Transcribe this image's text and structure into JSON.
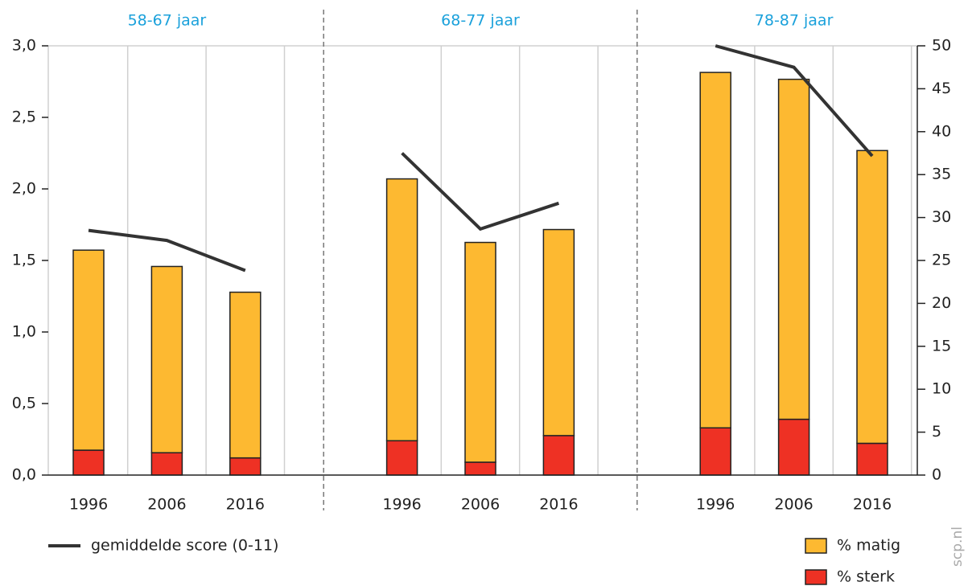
{
  "chart_data": {
    "type": "bar",
    "panels": [
      "58-67 jaar",
      "68-77 jaar",
      "78-87 jaar"
    ],
    "categories": [
      "1996",
      "2006",
      "2016",
      "1996",
      "2006",
      "2016",
      "1996",
      "2006",
      "2016"
    ],
    "series": [
      {
        "name": "% sterk",
        "color": "#ee3124",
        "axis": "y2",
        "values": [
          2.9,
          2.6,
          2.0,
          4.0,
          1.5,
          4.6,
          5.5,
          6.5,
          3.7
        ]
      },
      {
        "name": "% matig",
        "color": "#fdb931",
        "axis": "y2",
        "values": [
          23.3,
          21.7,
          19.3,
          30.5,
          25.6,
          24.0,
          41.4,
          39.6,
          34.1
        ]
      },
      {
        "name": "gemiddelde score (0-11)",
        "type": "line",
        "color": "#333333",
        "values": [
          1.71,
          1.64,
          1.43,
          2.25,
          1.72,
          1.9,
          3.0,
          2.85,
          2.23
        ]
      }
    ],
    "ylim": [
      0,
      3
    ],
    "yticks": [
      {
        "value": 0,
        "label": "0,0"
      },
      {
        "value": 0.5,
        "label": "0,5"
      },
      {
        "value": 1,
        "label": "1,0"
      },
      {
        "value": 1.5,
        "label": "1,5"
      },
      {
        "value": 2,
        "label": "2,0"
      },
      {
        "value": 2.5,
        "label": "2,5"
      },
      {
        "value": 3,
        "label": "3,0"
      }
    ],
    "y2lim": [
      0,
      50
    ],
    "y2ticks": [
      0,
      5,
      10,
      15,
      20,
      25,
      30,
      35,
      40,
      45,
      50
    ],
    "source": "scp.nl"
  }
}
